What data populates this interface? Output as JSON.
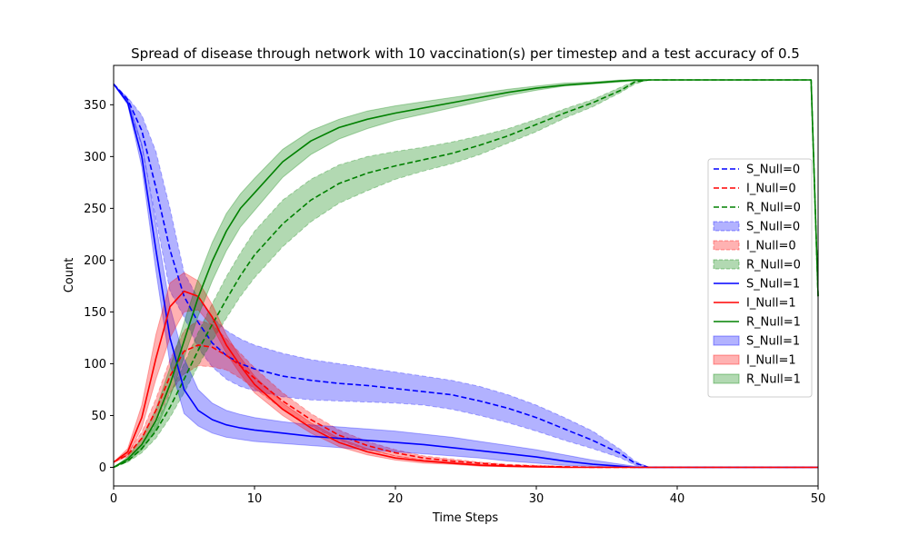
{
  "chart_data": {
    "type": "line",
    "title": "Spread of disease through network with 10 vaccination(s) per timestep and a test accuracy of 0.5",
    "xlabel": "Time Steps",
    "ylabel": "Count",
    "xlim": [
      0,
      50
    ],
    "ylim": [
      -18,
      388
    ],
    "xticks": [
      0,
      10,
      20,
      30,
      40,
      50
    ],
    "yticks": [
      0,
      50,
      100,
      150,
      200,
      250,
      300,
      350
    ],
    "grid": false,
    "legend_position": "right",
    "colors": {
      "S": "#0000ff",
      "I": "#ff0000",
      "R": "#008000"
    },
    "x": [
      0,
      1,
      2,
      3,
      4,
      5,
      6,
      7,
      8,
      9,
      10,
      12,
      14,
      16,
      18,
      20,
      22,
      24,
      26,
      28,
      30,
      32,
      34,
      36,
      37,
      38,
      39,
      40,
      45,
      49.5,
      50
    ],
    "series": [
      {
        "name": "S_Null=0",
        "style": "dashed",
        "values": [
          370,
          355,
          325,
          270,
          210,
          165,
          140,
          120,
          108,
          100,
          95,
          88,
          84,
          81,
          79,
          76,
          73,
          70,
          64,
          57,
          48,
          37,
          26,
          13,
          4,
          0,
          0,
          0,
          0,
          0,
          0
        ],
        "band_lower": [
          370,
          352,
          310,
          240,
          170,
          145,
          115,
          97,
          85,
          78,
          74,
          68,
          65,
          64,
          63,
          62,
          60,
          56,
          50,
          43,
          35,
          26,
          18,
          9,
          2,
          0,
          0,
          0,
          0,
          0,
          0
        ],
        "band_upper": [
          370,
          357,
          340,
          305,
          250,
          188,
          163,
          145,
          132,
          124,
          118,
          110,
          104,
          100,
          96,
          92,
          88,
          84,
          78,
          70,
          60,
          48,
          35,
          17,
          6,
          0,
          0,
          0,
          0,
          0,
          0
        ]
      },
      {
        "name": "I_Null=0",
        "style": "dashed",
        "values": [
          5,
          12,
          28,
          55,
          88,
          112,
          118,
          116,
          108,
          98,
          86,
          64,
          46,
          31,
          21,
          14,
          9,
          6,
          4,
          2,
          1,
          0.5,
          0,
          0,
          0,
          0,
          0,
          0,
          0,
          0,
          0
        ],
        "band_lower": [
          5,
          10,
          22,
          45,
          72,
          90,
          98,
          97,
          94,
          86,
          76,
          56,
          40,
          26,
          17,
          11,
          7,
          4,
          3,
          1,
          0.5,
          0,
          0,
          0,
          0,
          0,
          0,
          0,
          0,
          0,
          0
        ],
        "band_upper": [
          5,
          14,
          34,
          66,
          104,
          132,
          142,
          138,
          124,
          110,
          96,
          72,
          52,
          36,
          25,
          17,
          11,
          8,
          5,
          3,
          2,
          1,
          0.5,
          0,
          0,
          0,
          0,
          0,
          0,
          0,
          0
        ]
      },
      {
        "name": "R_Null=0",
        "style": "dashed",
        "values": [
          0,
          6,
          18,
          35,
          58,
          85,
          113,
          138,
          162,
          185,
          205,
          235,
          258,
          274,
          284,
          291,
          297,
          303,
          311,
          320,
          331,
          342,
          352,
          364,
          372,
          374,
          374,
          374,
          374,
          374,
          165
        ],
        "band_lower": [
          0,
          5,
          14,
          28,
          48,
          72,
          98,
          122,
          144,
          165,
          183,
          213,
          237,
          255,
          267,
          278,
          286,
          293,
          302,
          313,
          324,
          337,
          348,
          362,
          370,
          374,
          374,
          374,
          374,
          374,
          165
        ],
        "band_upper": [
          0,
          7,
          22,
          42,
          70,
          100,
          130,
          158,
          184,
          207,
          228,
          258,
          278,
          292,
          300,
          305,
          309,
          314,
          320,
          327,
          336,
          346,
          355,
          367,
          373,
          374,
          374,
          374,
          374,
          374,
          165
        ]
      },
      {
        "name": "S_Null=1",
        "style": "solid",
        "values": [
          370,
          352,
          300,
          210,
          125,
          75,
          55,
          46,
          41,
          38,
          36,
          33,
          30,
          28,
          26,
          24,
          22,
          19,
          16,
          13,
          10,
          6,
          3,
          1,
          0,
          0,
          0,
          0,
          0,
          0,
          0
        ],
        "band_lower": [
          370,
          350,
          290,
          190,
          100,
          52,
          40,
          33,
          29,
          27,
          25,
          23,
          21,
          19,
          17,
          15,
          13,
          11,
          9,
          6,
          4,
          2,
          1,
          0,
          0,
          0,
          0,
          0,
          0,
          0,
          0
        ],
        "band_upper": [
          370,
          355,
          312,
          235,
          155,
          105,
          75,
          62,
          55,
          51,
          48,
          44,
          41,
          39,
          37,
          35,
          32,
          29,
          25,
          21,
          17,
          12,
          7,
          3,
          1,
          0,
          0,
          0,
          0,
          0,
          0
        ]
      },
      {
        "name": "I_Null=1",
        "style": "solid",
        "values": [
          5,
          15,
          48,
          105,
          155,
          170,
          165,
          145,
          118,
          98,
          80,
          56,
          38,
          24,
          15,
          9,
          6,
          4,
          2,
          1,
          0.5,
          0,
          0,
          0,
          0,
          0,
          0,
          0,
          0,
          0,
          0
        ],
        "band_lower": [
          5,
          12,
          38,
          85,
          125,
          150,
          152,
          136,
          110,
          90,
          72,
          50,
          33,
          20,
          12,
          7,
          4,
          3,
          1,
          0.5,
          0,
          0,
          0,
          0,
          0,
          0,
          0,
          0,
          0,
          0,
          0
        ],
        "band_upper": [
          5,
          18,
          60,
          128,
          178,
          188,
          180,
          157,
          128,
          106,
          88,
          62,
          43,
          28,
          18,
          11,
          7,
          5,
          3,
          2,
          1,
          0.5,
          0,
          0,
          0,
          0,
          0,
          0,
          0,
          0,
          0
        ]
      },
      {
        "name": "R_Null=1",
        "style": "solid",
        "values": [
          0,
          8,
          22,
          45,
          80,
          122,
          164,
          199,
          228,
          250,
          265,
          295,
          315,
          328,
          336,
          342,
          347,
          352,
          357,
          362,
          366,
          369,
          371,
          373,
          374,
          374,
          374,
          374,
          374,
          374,
          165
        ],
        "band_lower": [
          0,
          6,
          17,
          36,
          68,
          106,
          146,
          180,
          209,
          232,
          248,
          280,
          302,
          317,
          327,
          335,
          341,
          347,
          353,
          359,
          364,
          368,
          370,
          372,
          373,
          374,
          374,
          374,
          374,
          374,
          165
        ],
        "band_upper": [
          0,
          10,
          28,
          56,
          96,
          140,
          182,
          217,
          245,
          264,
          279,
          307,
          325,
          336,
          344,
          349,
          353,
          357,
          361,
          365,
          368,
          371,
          372,
          374,
          374,
          374,
          374,
          374,
          374,
          374,
          165
        ]
      }
    ],
    "legend": [
      {
        "label": "S_Null=0",
        "kind": "line",
        "style": "dashed",
        "color": "#0000ff"
      },
      {
        "label": "I_Null=0",
        "kind": "line",
        "style": "dashed",
        "color": "#ff0000"
      },
      {
        "label": "R_Null=0",
        "kind": "line",
        "style": "dashed",
        "color": "#008000"
      },
      {
        "label": "S_Null=0",
        "kind": "band",
        "style": "dashed",
        "color": "#0000ff"
      },
      {
        "label": "I_Null=0",
        "kind": "band",
        "style": "dashed",
        "color": "#ff0000"
      },
      {
        "label": "R_Null=0",
        "kind": "band",
        "style": "dashed",
        "color": "#008000"
      },
      {
        "label": "S_Null=1",
        "kind": "line",
        "style": "solid",
        "color": "#0000ff"
      },
      {
        "label": "I_Null=1",
        "kind": "line",
        "style": "solid",
        "color": "#ff0000"
      },
      {
        "label": "R_Null=1",
        "kind": "line",
        "style": "solid",
        "color": "#008000"
      },
      {
        "label": "S_Null=1",
        "kind": "band",
        "style": "solid",
        "color": "#0000ff"
      },
      {
        "label": "I_Null=1",
        "kind": "band",
        "style": "solid",
        "color": "#ff0000"
      },
      {
        "label": "R_Null=1",
        "kind": "band",
        "style": "solid",
        "color": "#008000"
      }
    ]
  }
}
